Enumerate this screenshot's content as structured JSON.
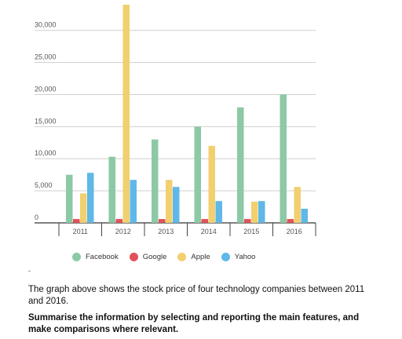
{
  "chart_data": {
    "type": "bar",
    "categories": [
      "2011",
      "2012",
      "2013",
      "2014",
      "2015",
      "2016"
    ],
    "series": [
      {
        "name": "Facebook",
        "color": "#8cc9a5",
        "values": [
          7500,
          10300,
          13000,
          15000,
          18000,
          20000
        ]
      },
      {
        "name": "Google",
        "color": "#e0525a",
        "values": [
          600,
          600,
          600,
          600,
          600,
          600
        ]
      },
      {
        "name": "Apple",
        "color": "#f2cf6f",
        "values": [
          4600,
          34000,
          6700,
          12000,
          3300,
          5600
        ]
      },
      {
        "name": "Yahoo",
        "color": "#5fb8e8",
        "values": [
          7800,
          6700,
          5600,
          3400,
          3400,
          2200
        ]
      }
    ],
    "yticks": [
      0,
      5000,
      10000,
      15000,
      20000,
      25000,
      30000
    ],
    "ytick_labels": [
      "0",
      "5,000",
      "10,000",
      "15,000",
      "20,000",
      "25,000",
      "30,000"
    ],
    "ylim": [
      0,
      34000
    ],
    "grid": true,
    "legend_position": "bottom"
  },
  "text": {
    "dash": "-",
    "description": "The graph above shows the stock price of four technology companies between 2011 and 2016.",
    "task": "Summarise the information by selecting and reporting the main features, and make comparisons where relevant."
  }
}
